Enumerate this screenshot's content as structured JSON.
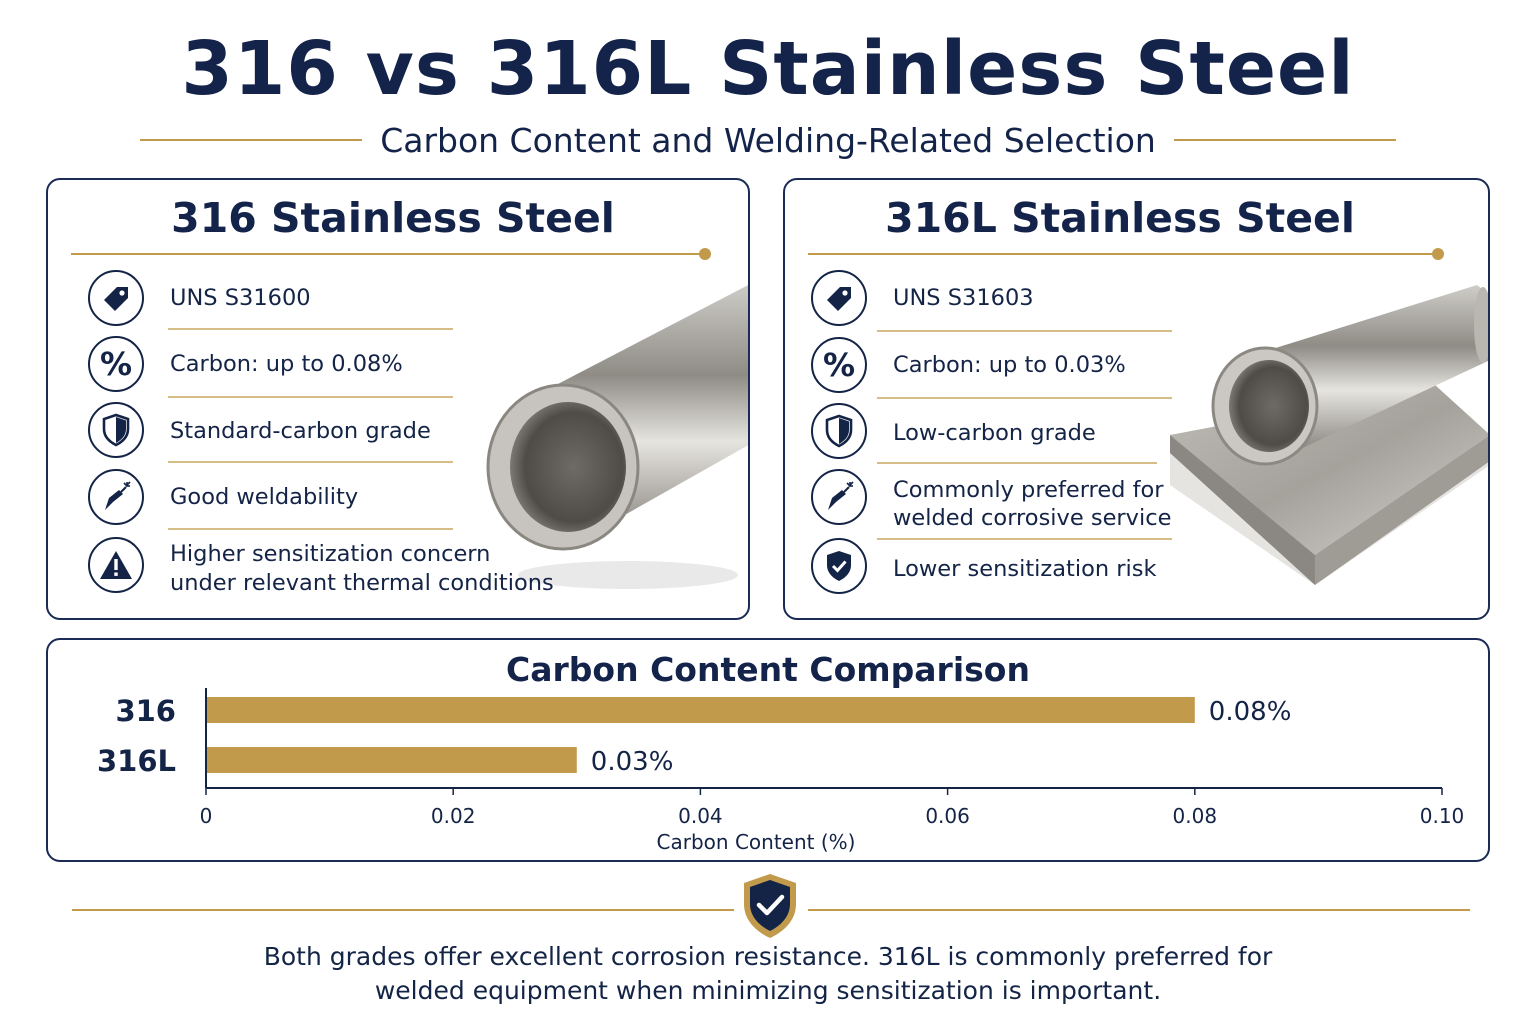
{
  "title": "316 vs 316L Stainless Steel",
  "subtitle": "Carbon Content and Welding-Related Selection",
  "colors": {
    "navy": "#132349",
    "gold": "#c19a4b",
    "bar": "#c19a4b"
  },
  "left_panel": {
    "title": "316 Stainless Steel",
    "features": [
      {
        "icon": "tag-icon",
        "text": "UNS S31600"
      },
      {
        "icon": "percent-icon",
        "text": "Carbon: up to 0.08%"
      },
      {
        "icon": "shield-icon",
        "text": "Standard-carbon grade"
      },
      {
        "icon": "welding-torch-icon",
        "text": "Good weldability"
      },
      {
        "icon": "warning-icon",
        "text_lines": [
          "Higher sensitization concern",
          "under relevant thermal conditions"
        ]
      }
    ]
  },
  "right_panel": {
    "title": "316L Stainless Steel",
    "features": [
      {
        "icon": "tag-icon",
        "text": "UNS S31603"
      },
      {
        "icon": "percent-icon",
        "text": "Carbon: up to 0.03%"
      },
      {
        "icon": "shield-icon",
        "text": "Low-carbon grade"
      },
      {
        "icon": "welding-torch-icon",
        "text_lines": [
          "Commonly preferred for",
          "welded corrosive service"
        ]
      },
      {
        "icon": "shield-check-icon",
        "text": "Lower sensitization risk"
      }
    ]
  },
  "chart_data": {
    "type": "bar",
    "orientation": "horizontal",
    "title": "Carbon Content Comparison",
    "categories": [
      "316",
      "316L"
    ],
    "values": [
      0.08,
      0.03
    ],
    "data_labels": [
      "0.08%",
      "0.03%"
    ],
    "xlabel": "Carbon Content (%)",
    "ylabel": "",
    "xlim": [
      0,
      0.1
    ],
    "xticks": [
      "0",
      "0.02",
      "0.04",
      "0.06",
      "0.08",
      "0.10"
    ],
    "grid": false
  },
  "footer": {
    "line1": "Both grades offer excellent corrosion resistance. 316L is commonly preferred for",
    "line2": "welded equipment when minimizing sensitization is important."
  }
}
